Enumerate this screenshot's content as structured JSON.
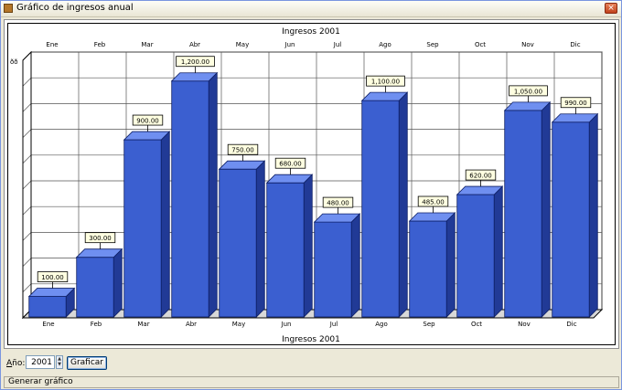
{
  "window": {
    "title": "Gráfico de ingresos anual",
    "close_label": "×"
  },
  "chart_data": {
    "type": "bar",
    "title": "Ingresos 2001",
    "footer_title": "Ingresos 2001",
    "categories": [
      "Ene",
      "Feb",
      "Mar",
      "Abr",
      "May",
      "Jun",
      "Jul",
      "Ago",
      "Sep",
      "Oct",
      "Nov",
      "Dic"
    ],
    "values": [
      100,
      300,
      900,
      1200,
      750,
      680,
      480,
      1100,
      485,
      620,
      1050,
      990
    ],
    "value_labels": [
      "100.00",
      "300.00",
      "900.00",
      "1,200.00",
      "750.00",
      "680.00",
      "480.00",
      "1,100.00",
      "485.00",
      "620.00",
      "1,050.00",
      "990.00"
    ],
    "ylim": [
      0,
      1250
    ],
    "y_axis_glyph": "ðð",
    "grid": true,
    "bar_color": "#3a5fcd",
    "three_d": true
  },
  "controls": {
    "year_label_prefix": "A",
    "year_label_rest": "ño:",
    "year_value": "2001",
    "graph_button_label": "Graficar"
  },
  "status": {
    "text": "Generar gráfico"
  }
}
